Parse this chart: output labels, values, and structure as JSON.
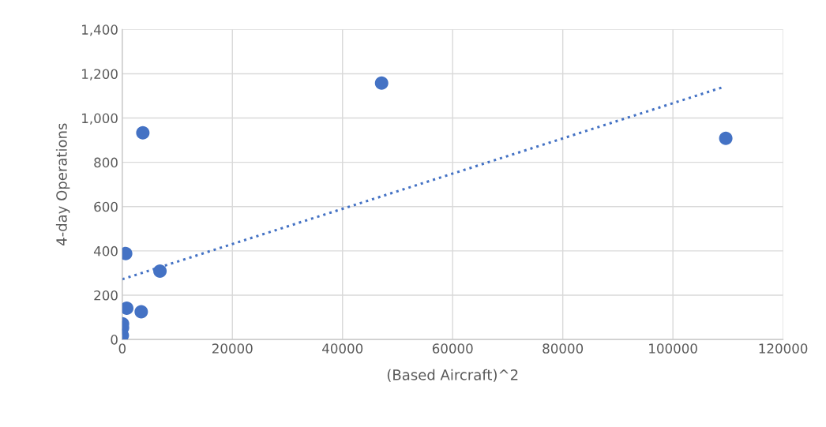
{
  "chart_data": {
    "type": "scatter",
    "xlabel": "(Based Aircraft)^2",
    "ylabel": "4-day Operations",
    "xlim": [
      0,
      120000
    ],
    "xticks": [
      0,
      20000,
      40000,
      60000,
      80000,
      100000,
      120000
    ],
    "ylim": [
      0,
      1400
    ],
    "yticks": [
      {
        "value": 0,
        "label": "0"
      },
      {
        "value": 200,
        "label": "200"
      },
      {
        "value": 400,
        "label": "400"
      },
      {
        "value": 600,
        "label": "600"
      },
      {
        "value": 800,
        "label": "800"
      },
      {
        "value": 1000,
        "label": "1,000"
      },
      {
        "value": 1200,
        "label": "1,200"
      },
      {
        "value": 1400,
        "label": "1,400"
      }
    ],
    "grid": true,
    "series": [
      {
        "type": "scatter",
        "color": "#4472c4",
        "marker": "circle",
        "x": [
          10,
          50,
          50,
          620,
          820,
          3450,
          3740,
          6850,
          47100,
          109600
        ],
        "values": [
          18,
          53,
          71,
          388,
          141,
          125,
          933,
          309,
          1158,
          908
        ]
      },
      {
        "type": "line",
        "color": "#4472c4",
        "line_style": "dotted",
        "marker": "none",
        "x": [
          0,
          108800
        ],
        "values": [
          272,
          1137
        ]
      }
    ]
  }
}
